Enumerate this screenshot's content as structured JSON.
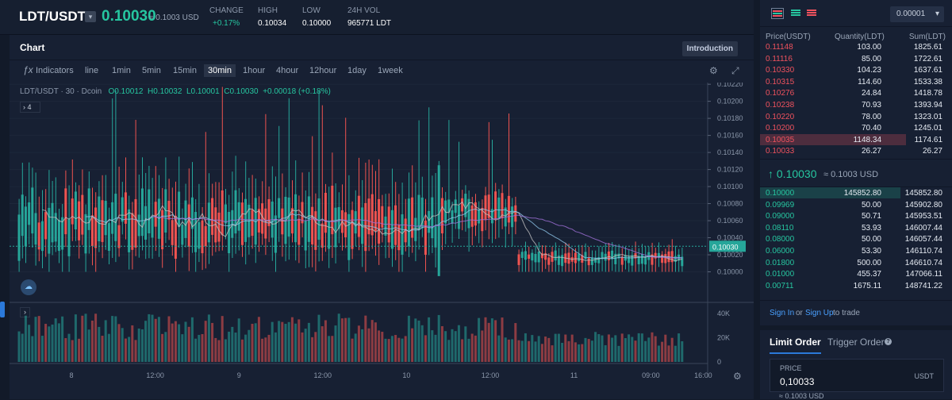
{
  "ticker": {
    "pair": "LDT/USDT",
    "last_price": "0.10030",
    "approx_usd": "≈ 0.1003 USD",
    "stats": [
      {
        "label": "CHANGE",
        "value": "+0.17%"
      },
      {
        "label": "HIGH",
        "value": "0.10034"
      },
      {
        "label": "LOW",
        "value": "0.10000"
      },
      {
        "label": "24H VOL",
        "value": "965771 LDT"
      }
    ]
  },
  "chart_card": {
    "title": "Chart",
    "intro_button": "Introduction",
    "indicators_label": "Indicators",
    "intervals": [
      "line",
      "1min",
      "5min",
      "15min",
      "30min",
      "1hour",
      "4hour",
      "12hour",
      "1day",
      "1week"
    ],
    "active_interval": "30min",
    "legend": {
      "symbol": "LDT/USDT · 30 · Dcoin",
      "open": "O0.10012",
      "high": "H0.10032",
      "low": "L0.10001",
      "close": "C0.10030",
      "change": "+0.00018 (+0.18%)"
    },
    "indicator_count": "4",
    "current_price_tag": "0.10030"
  },
  "chart_data": {
    "type": "candlestick",
    "price_axis_ticks": [
      "0.10220",
      "0.10200",
      "0.10180",
      "0.10160",
      "0.10140",
      "0.10120",
      "0.10100",
      "0.10080",
      "0.10060",
      "0.10040",
      "0.10020",
      "0.10000"
    ],
    "price_range": [
      0.0998,
      0.10222
    ],
    "volume_axis_ticks": [
      "40K",
      "20K",
      "0"
    ],
    "volume_range": [
      0,
      44000
    ],
    "time_axis_ticks": [
      "8",
      "12:00",
      "9",
      "12:00",
      "10",
      "12:00",
      "11",
      "09:00",
      "16:00"
    ],
    "last_price": 0.1003,
    "colors": {
      "up": "#26a69a",
      "down": "#ef5350",
      "ma1": "#a070d8",
      "ma2": "#8ec5e8",
      "ma3": "#c0c0c0"
    }
  },
  "order_book": {
    "layout_buttons": [
      "both-icon",
      "bids-icon",
      "asks-icon"
    ],
    "precision": "0.00001",
    "headers": {
      "price": "Price(USDT)",
      "qty": "Quantity(LDT)",
      "sum": "Sum(LDT)"
    },
    "asks": [
      {
        "price": "0.11148",
        "qty": "103.00",
        "sum": "1825.61",
        "depth": 0.0
      },
      {
        "price": "0.11116",
        "qty": "85.00",
        "sum": "1722.61",
        "depth": 0.0
      },
      {
        "price": "0.10330",
        "qty": "104.23",
        "sum": "1637.61",
        "depth": 0.0
      },
      {
        "price": "0.10315",
        "qty": "114.60",
        "sum": "1533.38",
        "depth": 0.0
      },
      {
        "price": "0.10276",
        "qty": "24.84",
        "sum": "1418.78",
        "depth": 0.0
      },
      {
        "price": "0.10238",
        "qty": "70.93",
        "sum": "1393.94",
        "depth": 0.0
      },
      {
        "price": "0.10220",
        "qty": "78.00",
        "sum": "1323.01",
        "depth": 0.0
      },
      {
        "price": "0.10200",
        "qty": "70.40",
        "sum": "1245.01",
        "depth": 0.0
      },
      {
        "price": "0.10035",
        "qty": "1148.34",
        "sum": "1174.61",
        "depth": 0.76
      },
      {
        "price": "0.10033",
        "qty": "26.27",
        "sum": "26.27",
        "depth": 0.0
      }
    ],
    "mid_price": "↑ 0.10030",
    "mid_approx": "≈ 0.1003 USD",
    "bids": [
      {
        "price": "0.10000",
        "qty": "145852.80",
        "sum": "145852.80",
        "depth": 0.73
      },
      {
        "price": "0.09969",
        "qty": "50.00",
        "sum": "145902.80",
        "depth": 0.0
      },
      {
        "price": "0.09000",
        "qty": "50.71",
        "sum": "145953.51",
        "depth": 0.0
      },
      {
        "price": "0.08110",
        "qty": "53.93",
        "sum": "146007.44",
        "depth": 0.0
      },
      {
        "price": "0.08000",
        "qty": "50.00",
        "sum": "146057.44",
        "depth": 0.0
      },
      {
        "price": "0.06000",
        "qty": "53.30",
        "sum": "146110.74",
        "depth": 0.0
      },
      {
        "price": "0.01800",
        "qty": "500.00",
        "sum": "146610.74",
        "depth": 0.0
      },
      {
        "price": "0.01000",
        "qty": "455.37",
        "sum": "147066.11",
        "depth": 0.0
      },
      {
        "price": "0.00711",
        "qty": "1675.11",
        "sum": "148741.22",
        "depth": 0.0
      }
    ]
  },
  "auth": {
    "sign_in": "Sign In",
    "or": "or",
    "sign_up": "Sign Up",
    "suffix": "to trade"
  },
  "order_form": {
    "tab_limit": "Limit Order",
    "tab_trigger": "Trigger Order",
    "info_icon": "?",
    "price_label": "PRICE",
    "price_value": "0,10033",
    "price_currency": "USDT",
    "price_approx": "≈ 0.1003 USD"
  }
}
